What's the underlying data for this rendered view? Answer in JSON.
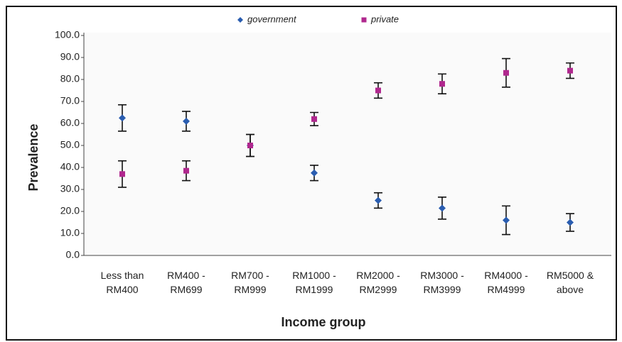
{
  "chart_data": {
    "type": "scatter",
    "x_label": "Income group",
    "y_label": "Prevalence",
    "categories": [
      "Less than RM400",
      "RM400 - RM699",
      "RM700 - RM999",
      "RM1000 - RM1999",
      "RM2000 - RM2999",
      "RM3000 - RM3999",
      "RM4000 - RM4999",
      "RM5000 & above"
    ],
    "series": [
      {
        "name": "government",
        "color": "#2a5db0",
        "marker": "diamond",
        "values": [
          62.5,
          61,
          50,
          37.5,
          25,
          21.5,
          16,
          15
        ],
        "errors": [
          6,
          4.5,
          5,
          3.5,
          3.5,
          5,
          6.5,
          4
        ]
      },
      {
        "name": "private",
        "color": "#b0288e",
        "marker": "square",
        "values": [
          37,
          38.5,
          50,
          62,
          75,
          78,
          83,
          84
        ],
        "errors": [
          6,
          4.5,
          5,
          3,
          3.5,
          4.5,
          6.5,
          3.5
        ]
      }
    ],
    "ylim": [
      0,
      100
    ],
    "yticks": [
      {
        "value": 0,
        "label": "0.0"
      },
      {
        "value": 10,
        "label": "10.0"
      },
      {
        "value": 20,
        "label": "20.0"
      },
      {
        "value": 30,
        "label": "30.0"
      },
      {
        "value": 40,
        "label": "40.0"
      },
      {
        "value": 50,
        "label": "50.0"
      },
      {
        "value": 60,
        "label": "60.0"
      },
      {
        "value": 70,
        "label": "70.0"
      },
      {
        "value": 80,
        "label": "80.0"
      },
      {
        "value": 90,
        "label": "90.0"
      },
      {
        "value": 100,
        "label": "100.0"
      }
    ],
    "grid": false,
    "legend": "top"
  }
}
